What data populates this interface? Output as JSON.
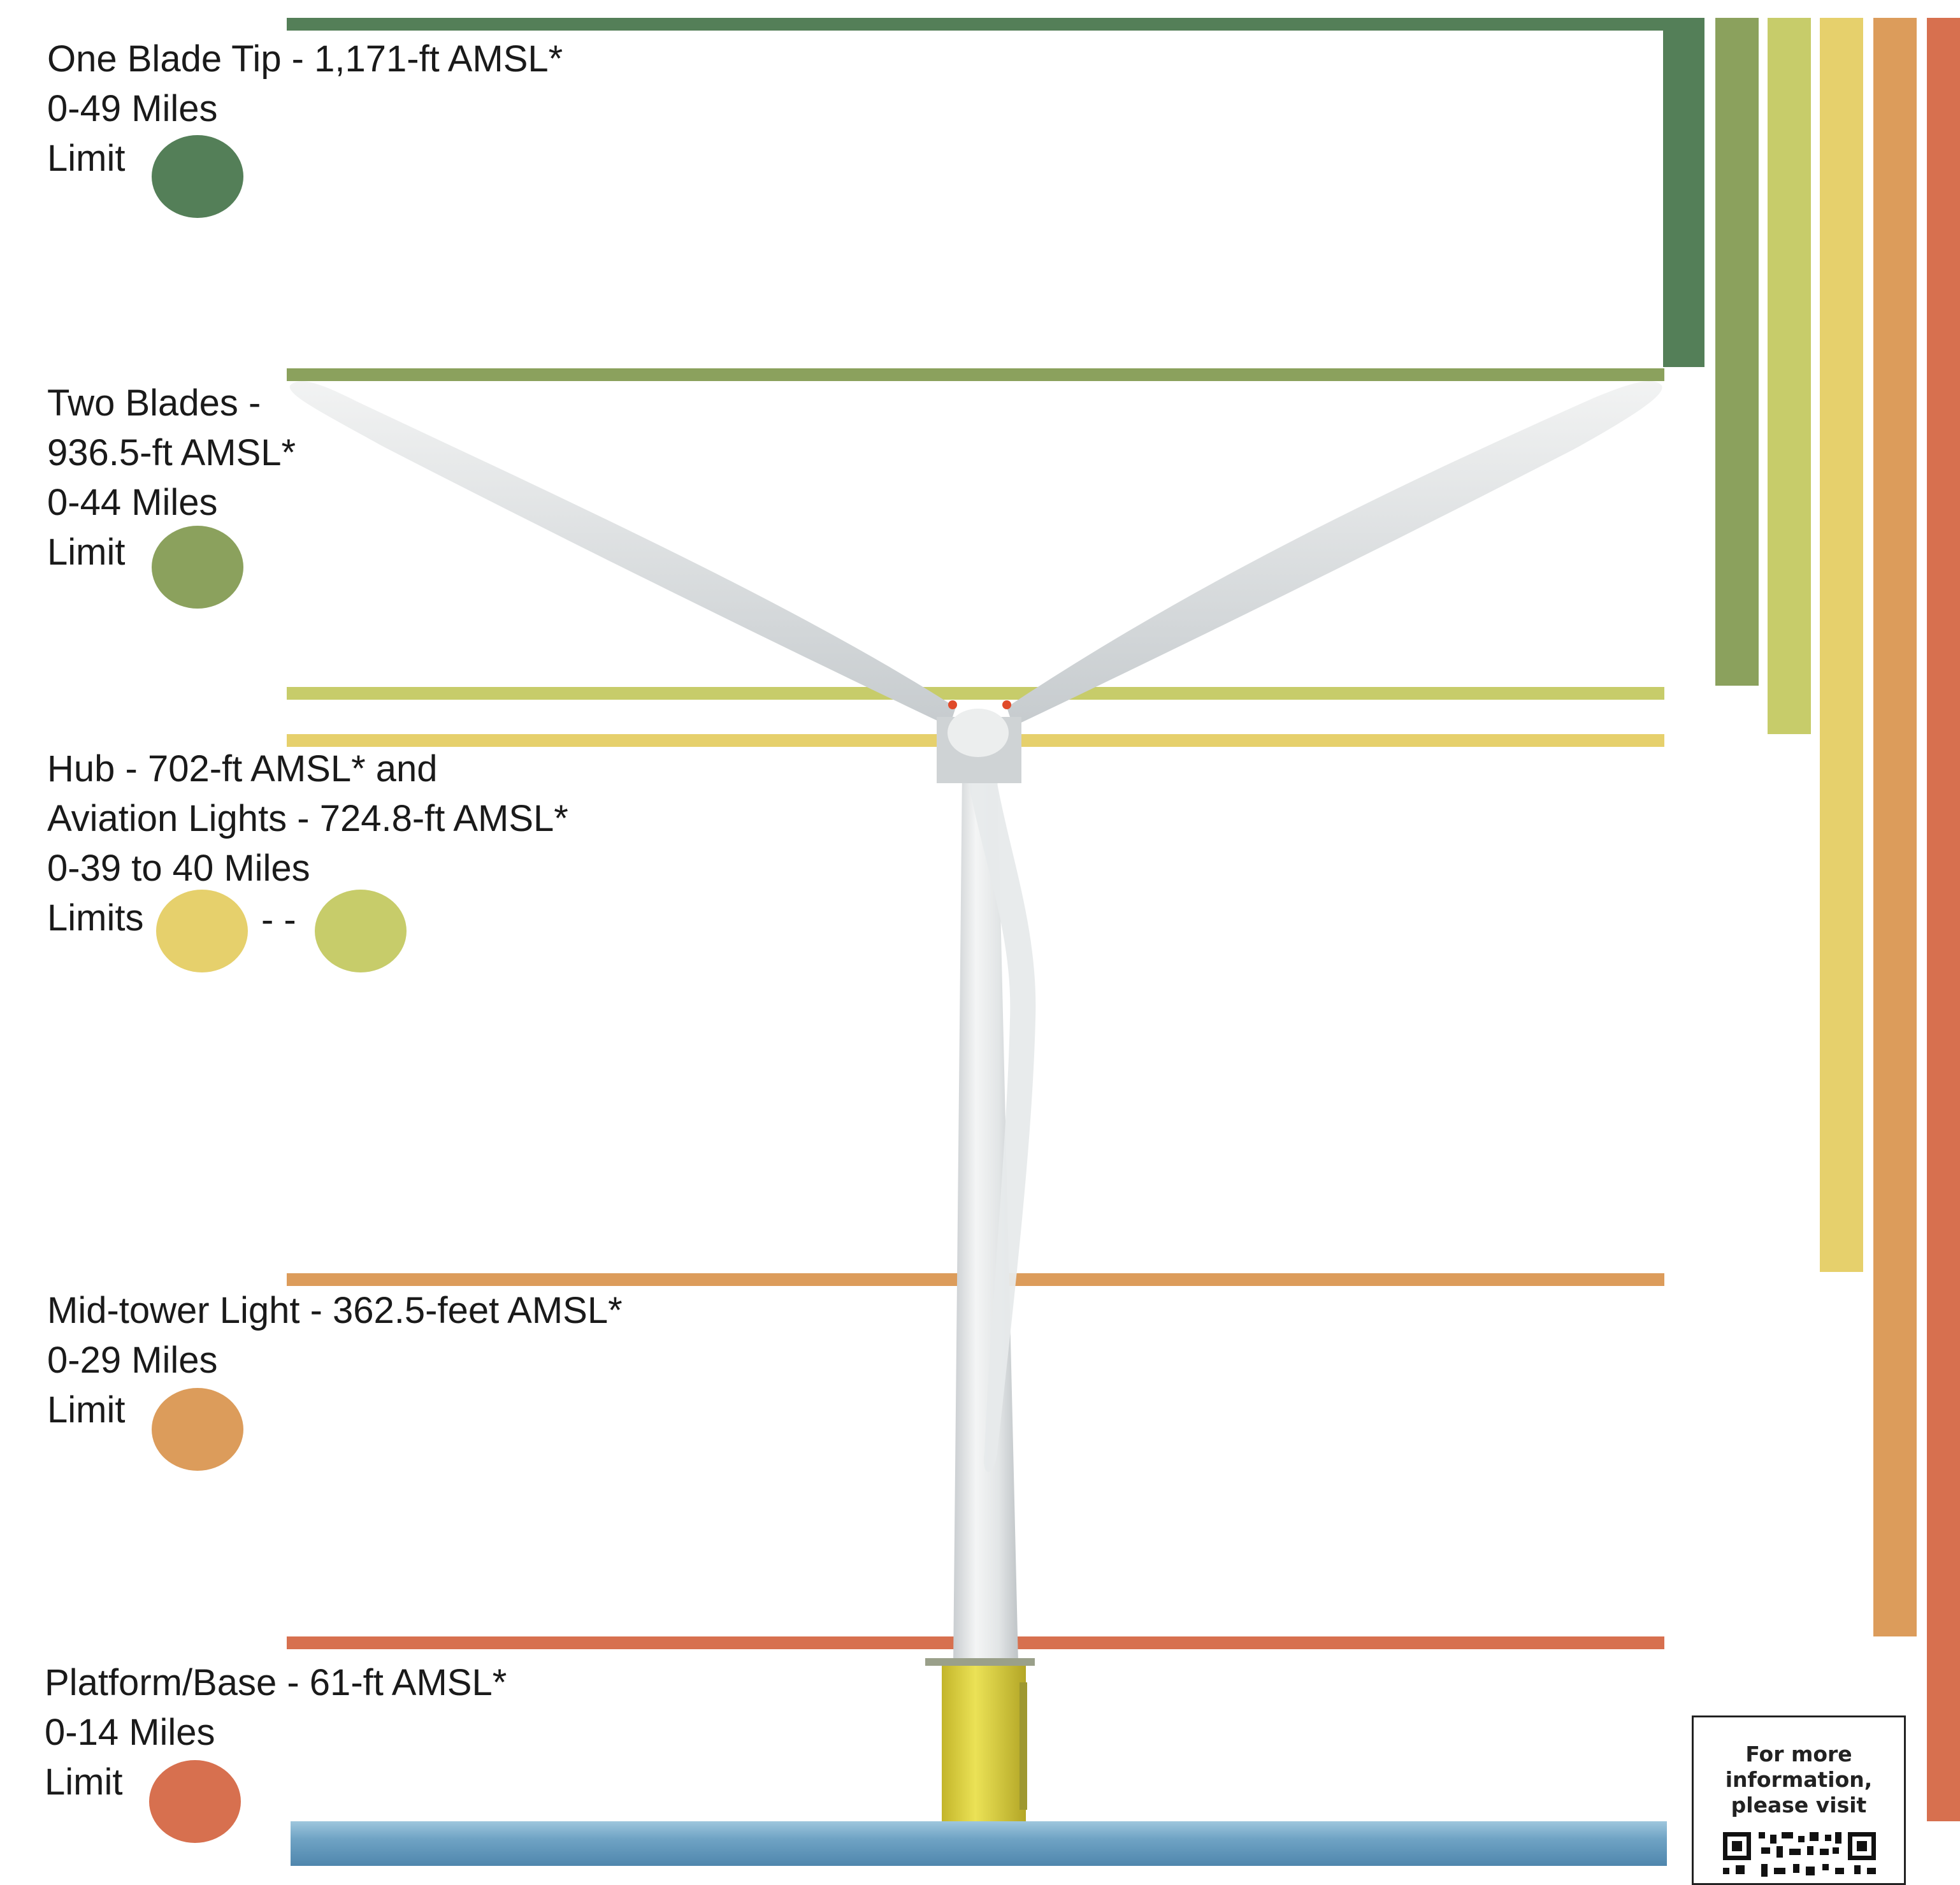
{
  "colors": {
    "blade_tip": "#547f58",
    "two_blades": "#8ba15d",
    "aviation_lights": "#c7cc6a",
    "hub": "#e6d06c",
    "mid_tower": "#dc9c5b",
    "platform": "#d7704f",
    "tower_white": "#eef0f0",
    "foundation_yellow": "#e2d641"
  },
  "labels": {
    "blade_tip": {
      "lines": [
        "One Blade Tip - 1,171-ft AMSL*",
        "0-49 Miles",
        "Limit"
      ]
    },
    "two_blades": {
      "lines": [
        "Two Blades -",
        "936.5-ft AMSL*",
        "0-44 Miles",
        "Limit"
      ]
    },
    "hub": {
      "lines": [
        "Hub - 702-ft AMSL* and",
        "Aviation Lights - 724.8-ft AMSL*",
        "0-39 to 40 Miles",
        "Limits"
      ],
      "separator": "- -"
    },
    "mid_tower": {
      "lines": [
        "Mid-tower Light - 362.5-feet AMSL*",
        "0-29 Miles",
        "Limit"
      ]
    },
    "platform": {
      "lines": [
        "Platform/Base - 61-ft AMSL*",
        "0-14 Miles",
        "Limit"
      ]
    }
  },
  "info_box": {
    "lines": [
      "For more",
      "information,",
      "please visit"
    ]
  }
}
